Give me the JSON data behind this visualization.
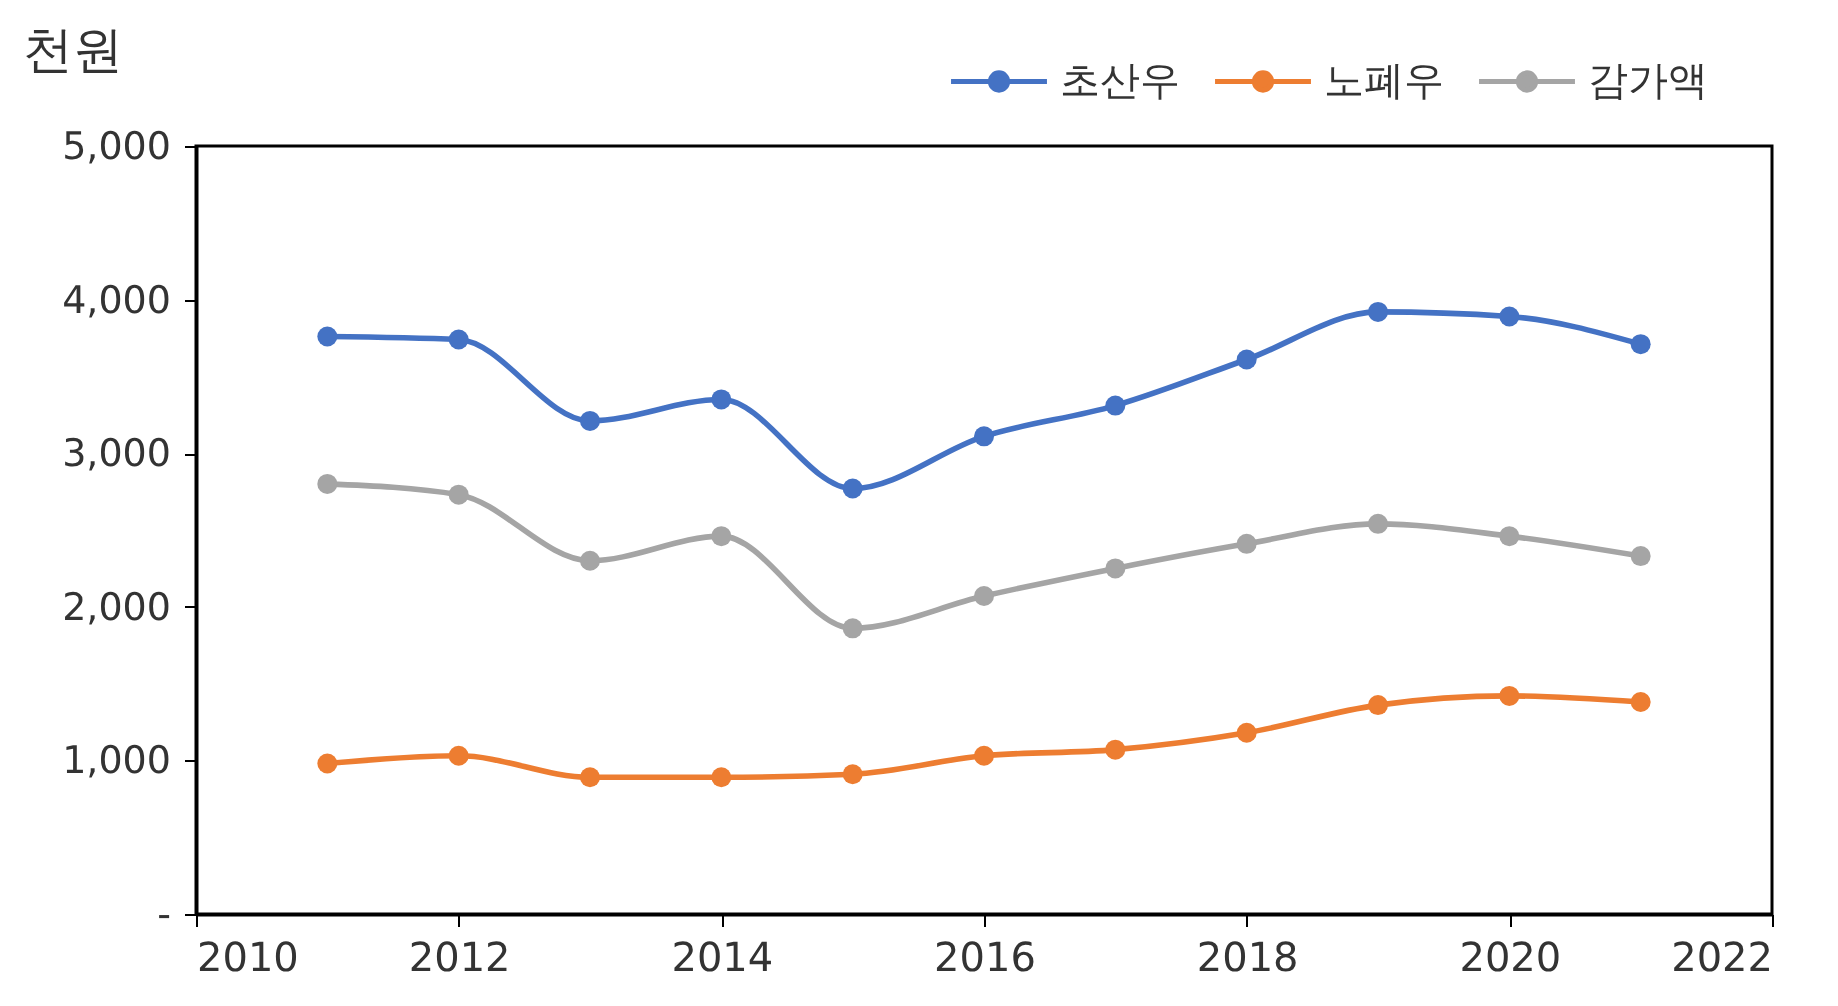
{
  "chart_data": {
    "type": "line",
    "ylabel": "천원",
    "x": [
      2011,
      2012,
      2013,
      2014,
      2015,
      2016,
      2017,
      2018,
      2019,
      2020,
      2021
    ],
    "series": [
      {
        "name": "초산우",
        "color": "#4472c4",
        "values": [
          3760,
          3740,
          3210,
          3350,
          2770,
          3110,
          3310,
          3610,
          3920,
          3890,
          3710
        ]
      },
      {
        "name": "노폐우",
        "color": "#ed7d31",
        "values": [
          980,
          1030,
          890,
          890,
          910,
          1030,
          1070,
          1180,
          1360,
          1420,
          1380
        ]
      },
      {
        "name": "감가액",
        "color": "#a5a5a5",
        "values": [
          2800,
          2730,
          2300,
          2460,
          1860,
          2070,
          2250,
          2410,
          2540,
          2460,
          2330
        ]
      }
    ],
    "xlim": [
      2010,
      2022
    ],
    "xticks": [
      2010,
      2012,
      2014,
      2016,
      2018,
      2020,
      2022
    ],
    "ylim": [
      0,
      5000
    ],
    "yticks": [
      {
        "value": 0,
        "label": "-"
      },
      {
        "value": 1000,
        "label": "1,000"
      },
      {
        "value": 2000,
        "label": "2,000"
      },
      {
        "value": 3000,
        "label": "3,000"
      },
      {
        "value": 4000,
        "label": "4,000"
      },
      {
        "value": 5000,
        "label": "5,000"
      }
    ],
    "legend": "top right",
    "marker": "circle",
    "line_style": "solid",
    "grid": false
  }
}
